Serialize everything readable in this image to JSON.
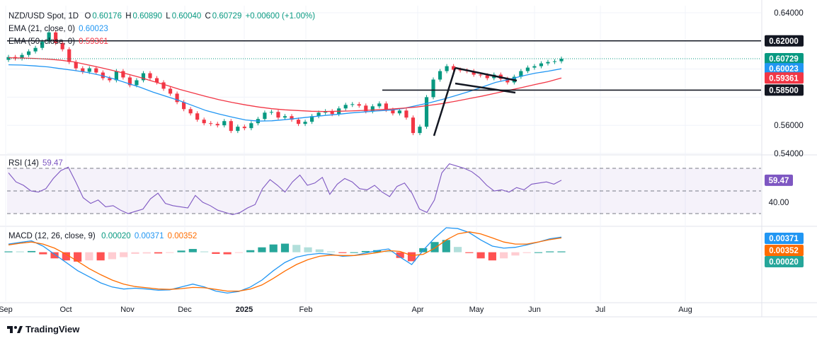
{
  "header": {
    "symbol": "NZD/USD Spot, 1D",
    "o_label": "O",
    "o_value": "0.60176",
    "h_label": "H",
    "h_value": "0.60890",
    "l_label": "L",
    "l_value": "0.60040",
    "c_label": "C",
    "c_value": "0.60729",
    "change": "+0.00600 (+1.00%)",
    "ema21_label": "EMA (21, close, 0)",
    "ema21_value": "0.60023",
    "ema50_label": "EMA (50, close, 0)",
    "ema50_value": "0.59361"
  },
  "rsi_panel": {
    "label": "RSI (14)",
    "value": "59.47"
  },
  "macd_panel": {
    "label": "MACD (12, 26, close, 9)",
    "hist_value": "0.00020",
    "macd_value": "0.00371",
    "signal_value": "0.00352"
  },
  "brand": {
    "name": "TradingView"
  },
  "colors": {
    "up": "#089981",
    "down": "#f23645",
    "ema21": "#2196f3",
    "ema50": "#f23645",
    "rsi": "#7e57c2",
    "macd": "#2196f3",
    "signal": "#ff6d00",
    "price_label": "#089981",
    "level_label": "#131722"
  },
  "chart_data": [
    {
      "type": "candlestick",
      "title": "NZD/USD Spot, 1D",
      "x_ticks": [
        "Sep",
        "Oct",
        "Nov",
        "Dec",
        "2025",
        "Feb",
        "Apr",
        "May",
        "Jun",
        "Jul",
        "Aug"
      ],
      "y_ticks": [
        0.64,
        0.62,
        0.60729,
        0.60023,
        0.59361,
        0.585,
        0.56,
        0.54
      ],
      "ylim": [
        0.54,
        0.645
      ],
      "last_price": 0.60729,
      "horizontal_levels": [
        0.62,
        0.585
      ],
      "series": [
        {
          "name": "NZD/USD Spot",
          "values": [
            0.6085,
            0.6075,
            0.61,
            0.6125,
            0.615,
            0.6195,
            0.626,
            0.6185,
            0.614,
            0.605,
            0.6005,
            0.598,
            0.6005,
            0.5975,
            0.5935,
            0.592,
            0.5985,
            0.594,
            0.5885,
            0.592,
            0.597,
            0.5935,
            0.5905,
            0.586,
            0.5825,
            0.5765,
            0.5715,
            0.5685,
            0.564,
            0.5615,
            0.561,
            0.56,
            0.563,
            0.556,
            0.559,
            0.558,
            0.5615,
            0.5645,
            0.569,
            0.5695,
            0.5655,
            0.5665,
            0.564,
            0.561,
            0.5625,
            0.5665,
            0.569,
            0.57,
            0.568,
            0.572,
            0.5745,
            0.575,
            0.574,
            0.57,
            0.5735,
            0.5755,
            0.571,
            0.5685,
            0.5705,
            0.5655,
            0.5545,
            0.559,
            0.58,
            0.5925,
            0.5985,
            0.602,
            0.5995,
            0.599,
            0.5985,
            0.596,
            0.5955,
            0.5935,
            0.596,
            0.593,
            0.5905,
            0.5945,
            0.5985,
            0.601,
            0.602,
            0.604,
            0.605,
            0.6055,
            0.6073
          ]
        },
        {
          "name": "EMA (21, close, 0)",
          "values": [
            0.603,
            0.6028,
            0.6022,
            0.6015,
            0.6002,
            0.599,
            0.5975,
            0.5955,
            0.593,
            0.59,
            0.587,
            0.5835,
            0.5805,
            0.5775,
            0.574,
            0.5705,
            0.568,
            0.5658,
            0.5638,
            0.563,
            0.5632,
            0.564,
            0.565,
            0.566,
            0.567,
            0.5678,
            0.5688,
            0.5695,
            0.5702,
            0.5708,
            0.572,
            0.574,
            0.576,
            0.5785,
            0.5812,
            0.584,
            0.5872,
            0.5905,
            0.5925,
            0.595,
            0.597,
            0.5985,
            0.6002
          ]
        },
        {
          "name": "EMA (50, close, 0)",
          "values": [
            0.608,
            0.6078,
            0.6075,
            0.607,
            0.6062,
            0.605,
            0.603,
            0.601,
            0.5988,
            0.5965,
            0.594,
            0.5912,
            0.5885,
            0.5855,
            0.583,
            0.5805,
            0.5782,
            0.5762,
            0.5745,
            0.573,
            0.5718,
            0.571,
            0.5705,
            0.57,
            0.5698,
            0.57,
            0.5702,
            0.5706,
            0.571,
            0.5715,
            0.5722,
            0.573,
            0.5742,
            0.5755,
            0.5772,
            0.579,
            0.5808,
            0.5828,
            0.5848,
            0.5868,
            0.589,
            0.591,
            0.5936
          ]
        }
      ]
    },
    {
      "type": "line",
      "title": "RSI (14)",
      "ylim": [
        20,
        80
      ],
      "y_ticks": [
        59.47,
        40
      ],
      "reference_levels": [
        70,
        50,
        30
      ],
      "series": [
        {
          "name": "RSI (14)",
          "values": [
            66,
            58,
            55,
            50,
            49,
            52,
            61,
            68,
            71,
            58,
            44,
            39,
            42,
            36,
            37,
            33,
            30,
            32,
            34,
            43,
            48,
            39,
            37,
            36,
            35,
            46,
            40,
            37,
            33,
            31,
            29,
            31,
            35,
            38,
            52,
            60,
            55,
            49,
            58,
            64,
            55,
            57,
            62,
            47,
            56,
            61,
            58,
            52,
            51,
            55,
            49,
            45,
            54,
            57,
            48,
            34,
            31,
            42,
            66,
            74,
            72,
            70,
            67,
            62,
            55,
            50,
            51,
            49,
            53,
            51,
            56,
            57,
            58,
            56,
            59.47
          ]
        }
      ]
    },
    {
      "type": "line",
      "title": "MACD (12, 26, close, 9)",
      "ylim": [
        -0.012,
        0.006
      ],
      "y_ticks": [
        0.00371,
        0.00352,
        0.0002
      ],
      "series": [
        {
          "name": "MACD",
          "values": [
            0.002,
            0.0024,
            0.0028,
            0.0015,
            -0.0005,
            -0.0025,
            -0.0045,
            -0.006,
            -0.0075,
            -0.0085,
            -0.009,
            -0.0088,
            -0.009,
            -0.0093,
            -0.0092,
            -0.0085,
            -0.0078,
            -0.0085,
            -0.0095,
            -0.01,
            -0.0096,
            -0.0085,
            -0.0068,
            -0.0045,
            -0.0025,
            -0.0012,
            -0.0006,
            -0.0003,
            -0.0005,
            -0.001,
            -0.0008,
            -0.0002,
            0.0004,
            0.0008,
            -0.0012,
            -0.003,
            0.0005,
            0.0035,
            0.006,
            0.0058,
            0.0048,
            0.003,
            0.0015,
            0.001,
            0.0012,
            0.0018,
            0.0025,
            0.0033,
            0.0037
          ]
        },
        {
          "name": "Signal",
          "values": [
            0.0018,
            0.0022,
            0.0025,
            0.002,
            0.001,
            -0.0005,
            -0.0022,
            -0.004,
            -0.0055,
            -0.0068,
            -0.0078,
            -0.0084,
            -0.0087,
            -0.009,
            -0.0091,
            -0.0089,
            -0.0086,
            -0.0087,
            -0.0091,
            -0.0095,
            -0.0095,
            -0.009,
            -0.008,
            -0.0064,
            -0.0046,
            -0.003,
            -0.0018,
            -0.001,
            -0.0007,
            -0.0008,
            -0.0008,
            -0.0005,
            -0.0001,
            0.0004,
            0.0002,
            -0.0008,
            -0.0005,
            0.001,
            0.003,
            0.0045,
            0.005,
            0.0045,
            0.0035,
            0.0025,
            0.002,
            0.002,
            0.0025,
            0.0031,
            0.0035
          ]
        }
      ]
    }
  ]
}
